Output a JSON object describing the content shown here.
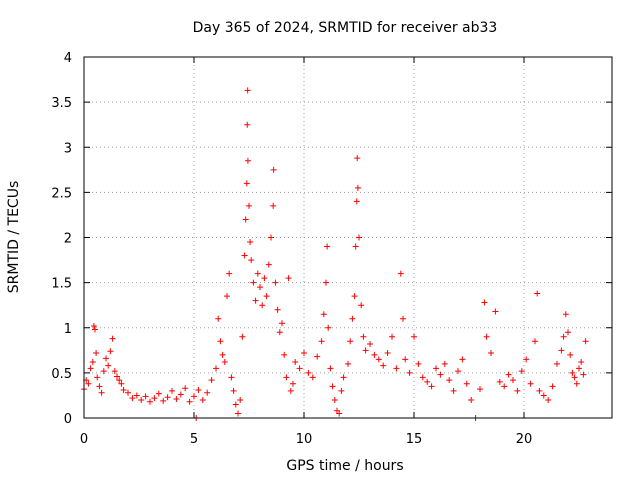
{
  "chart_data": {
    "type": "scatter",
    "title": "Day 365 of 2024, SRMTID for receiver ab33",
    "xlabel": "GPS time / hours",
    "ylabel": "SRMTID / TECUs",
    "xlim": [
      0,
      24
    ],
    "ylim": [
      0,
      4
    ],
    "xticks": [
      0,
      5,
      10,
      15,
      20
    ],
    "xtick_labels": [
      "0",
      "5",
      "10",
      "15",
      "20"
    ],
    "yticks": [
      0,
      0.5,
      1,
      1.5,
      2,
      2.5,
      3,
      3.5,
      4
    ],
    "ytick_labels": [
      "0",
      "0.5",
      "1",
      "1.5",
      "2",
      "2.5",
      "3",
      "3.5",
      "4"
    ],
    "grid": true,
    "marker": "+",
    "series": [
      {
        "name": "ab33",
        "color": "#ff0000",
        "points": [
          [
            0.0,
            0.32
          ],
          [
            0.1,
            0.42
          ],
          [
            0.2,
            0.38
          ],
          [
            0.3,
            0.55
          ],
          [
            0.4,
            0.62
          ],
          [
            0.45,
            1.02
          ],
          [
            0.5,
            0.98
          ],
          [
            0.55,
            0.72
          ],
          [
            0.6,
            0.45
          ],
          [
            0.7,
            0.35
          ],
          [
            0.8,
            0.28
          ],
          [
            0.9,
            0.52
          ],
          [
            1.0,
            0.66
          ],
          [
            1.1,
            0.58
          ],
          [
            1.2,
            0.74
          ],
          [
            1.3,
            0.88
          ],
          [
            1.4,
            0.52
          ],
          [
            1.5,
            0.46
          ],
          [
            1.6,
            0.42
          ],
          [
            1.7,
            0.38
          ],
          [
            1.8,
            0.31
          ],
          [
            2.0,
            0.28
          ],
          [
            2.2,
            0.22
          ],
          [
            2.4,
            0.25
          ],
          [
            2.6,
            0.2
          ],
          [
            2.8,
            0.24
          ],
          [
            3.0,
            0.18
          ],
          [
            3.2,
            0.22
          ],
          [
            3.4,
            0.27
          ],
          [
            3.6,
            0.19
          ],
          [
            3.8,
            0.23
          ],
          [
            4.0,
            0.3
          ],
          [
            4.2,
            0.21
          ],
          [
            4.4,
            0.26
          ],
          [
            4.6,
            0.33
          ],
          [
            4.8,
            0.18
          ],
          [
            5.0,
            0.24
          ],
          [
            5.1,
            0.0
          ],
          [
            5.2,
            0.31
          ],
          [
            5.4,
            0.2
          ],
          [
            5.6,
            0.28
          ],
          [
            5.8,
            0.42
          ],
          [
            6.0,
            0.55
          ],
          [
            6.1,
            1.1
          ],
          [
            6.2,
            0.85
          ],
          [
            6.3,
            0.7
          ],
          [
            6.4,
            0.62
          ],
          [
            6.5,
            1.35
          ],
          [
            6.6,
            1.6
          ],
          [
            6.7,
            0.45
          ],
          [
            6.8,
            0.3
          ],
          [
            6.9,
            0.15
          ],
          [
            7.0,
            0.05
          ],
          [
            7.1,
            0.2
          ],
          [
            7.2,
            0.9
          ],
          [
            7.3,
            1.8
          ],
          [
            7.35,
            2.2
          ],
          [
            7.4,
            2.6
          ],
          [
            7.42,
            3.25
          ],
          [
            7.44,
            3.63
          ],
          [
            7.45,
            2.85
          ],
          [
            7.5,
            2.35
          ],
          [
            7.55,
            1.95
          ],
          [
            7.6,
            1.75
          ],
          [
            7.7,
            1.5
          ],
          [
            7.8,
            1.3
          ],
          [
            7.9,
            1.6
          ],
          [
            8.0,
            1.45
          ],
          [
            8.1,
            1.25
          ],
          [
            8.2,
            1.55
          ],
          [
            8.3,
            1.35
          ],
          [
            8.4,
            1.7
          ],
          [
            8.5,
            2.0
          ],
          [
            8.6,
            2.35
          ],
          [
            8.62,
            2.75
          ],
          [
            8.7,
            1.5
          ],
          [
            8.8,
            1.2
          ],
          [
            8.9,
            0.95
          ],
          [
            9.0,
            1.05
          ],
          [
            9.1,
            0.7
          ],
          [
            9.2,
            0.45
          ],
          [
            9.3,
            1.55
          ],
          [
            9.4,
            0.3
          ],
          [
            9.5,
            0.38
          ],
          [
            9.6,
            0.62
          ],
          [
            9.8,
            0.55
          ],
          [
            10.0,
            0.72
          ],
          [
            10.2,
            0.5
          ],
          [
            10.4,
            0.45
          ],
          [
            10.6,
            0.68
          ],
          [
            10.8,
            0.85
          ],
          [
            10.9,
            1.15
          ],
          [
            11.0,
            1.5
          ],
          [
            11.05,
            1.9
          ],
          [
            11.1,
            1.0
          ],
          [
            11.2,
            0.55
          ],
          [
            11.3,
            0.35
          ],
          [
            11.4,
            0.2
          ],
          [
            11.5,
            0.08
          ],
          [
            11.6,
            0.05
          ],
          [
            11.7,
            0.3
          ],
          [
            11.8,
            0.45
          ],
          [
            12.0,
            0.6
          ],
          [
            12.1,
            0.85
          ],
          [
            12.2,
            1.1
          ],
          [
            12.3,
            1.35
          ],
          [
            12.35,
            1.9
          ],
          [
            12.4,
            2.4
          ],
          [
            12.42,
            2.88
          ],
          [
            12.45,
            2.55
          ],
          [
            12.5,
            2.0
          ],
          [
            12.6,
            1.25
          ],
          [
            12.7,
            0.9
          ],
          [
            12.8,
            0.75
          ],
          [
            13.0,
            0.82
          ],
          [
            13.2,
            0.7
          ],
          [
            13.4,
            0.65
          ],
          [
            13.6,
            0.58
          ],
          [
            13.8,
            0.72
          ],
          [
            14.0,
            0.9
          ],
          [
            14.2,
            0.55
          ],
          [
            14.4,
            1.6
          ],
          [
            14.5,
            1.1
          ],
          [
            14.6,
            0.65
          ],
          [
            14.8,
            0.5
          ],
          [
            15.0,
            0.9
          ],
          [
            15.2,
            0.6
          ],
          [
            15.4,
            0.45
          ],
          [
            15.6,
            0.4
          ],
          [
            15.8,
            0.35
          ],
          [
            16.0,
            0.55
          ],
          [
            16.2,
            0.48
          ],
          [
            16.4,
            0.6
          ],
          [
            16.6,
            0.42
          ],
          [
            16.8,
            0.3
          ],
          [
            17.0,
            0.52
          ],
          [
            17.2,
            0.65
          ],
          [
            17.4,
            0.38
          ],
          [
            17.6,
            0.2
          ],
          [
            17.8,
            0.0
          ],
          [
            18.0,
            0.32
          ],
          [
            18.2,
            1.28
          ],
          [
            18.3,
            0.9
          ],
          [
            18.5,
            0.72
          ],
          [
            18.7,
            1.18
          ],
          [
            18.9,
            0.4
          ],
          [
            19.1,
            0.35
          ],
          [
            19.3,
            0.48
          ],
          [
            19.5,
            0.42
          ],
          [
            19.7,
            0.3
          ],
          [
            19.9,
            0.52
          ],
          [
            20.1,
            0.65
          ],
          [
            20.3,
            0.38
          ],
          [
            20.5,
            0.85
          ],
          [
            20.6,
            1.38
          ],
          [
            20.7,
            0.3
          ],
          [
            20.9,
            0.25
          ],
          [
            21.1,
            0.2
          ],
          [
            21.3,
            0.35
          ],
          [
            21.5,
            0.6
          ],
          [
            21.7,
            0.75
          ],
          [
            21.8,
            0.9
          ],
          [
            21.9,
            1.15
          ],
          [
            22.0,
            0.95
          ],
          [
            22.1,
            0.7
          ],
          [
            22.2,
            0.5
          ],
          [
            22.3,
            0.45
          ],
          [
            22.4,
            0.38
          ],
          [
            22.5,
            0.55
          ],
          [
            22.6,
            0.62
          ],
          [
            22.7,
            0.48
          ],
          [
            22.8,
            0.85
          ]
        ]
      }
    ]
  }
}
